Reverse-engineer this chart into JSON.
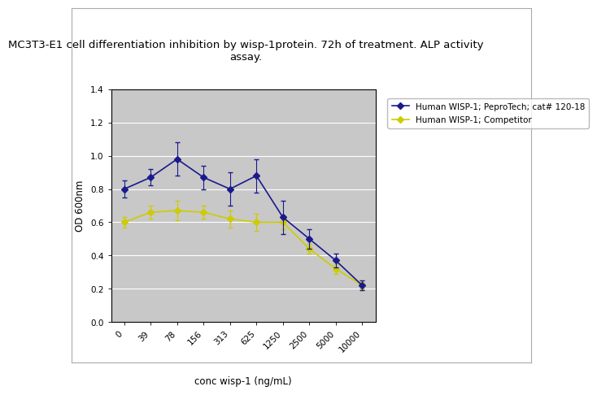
{
  "title": "MC3T3-E1 cell differentiation inhibition by wisp-1protein. 72h of treatment. ALP activity\nassay.",
  "xlabel": "conc wisp-1 (ng/mL)",
  "ylabel": "OD 600nm",
  "x_labels": [
    "0",
    "39",
    "78",
    "156",
    "313",
    "625",
    "1250",
    "2500",
    "5000",
    "10000"
  ],
  "x_positions": [
    0,
    1,
    2,
    3,
    4,
    5,
    6,
    7,
    8,
    9
  ],
  "blue_y": [
    0.8,
    0.87,
    0.98,
    0.87,
    0.8,
    0.88,
    0.63,
    0.5,
    0.37,
    0.22
  ],
  "blue_err": [
    0.05,
    0.05,
    0.1,
    0.07,
    0.1,
    0.1,
    0.1,
    0.06,
    0.04,
    0.03
  ],
  "yellow_y": [
    0.6,
    0.66,
    0.67,
    0.66,
    0.62,
    0.6,
    0.6,
    0.44,
    0.32,
    0.22
  ],
  "yellow_err": [
    0.03,
    0.04,
    0.06,
    0.04,
    0.05,
    0.05,
    0.04,
    0.03,
    0.03,
    0.02
  ],
  "blue_color": "#1a1a8c",
  "yellow_color": "#cccc00",
  "ylim": [
    0,
    1.4
  ],
  "yticks": [
    0,
    0.2,
    0.4,
    0.6,
    0.8,
    1.0,
    1.2,
    1.4
  ],
  "legend_labels": [
    "Human WISP-1; PeproTech; cat# 120-18",
    "Human WISP-1; Competitor"
  ],
  "plot_bg_color": "#c8c8c8",
  "fig_bg_color": "#ffffff",
  "border_color": "#aaaaaa",
  "title_fontsize": 9.5,
  "axis_label_fontsize": 8.5,
  "tick_fontsize": 7.5,
  "legend_fontsize": 7.5
}
